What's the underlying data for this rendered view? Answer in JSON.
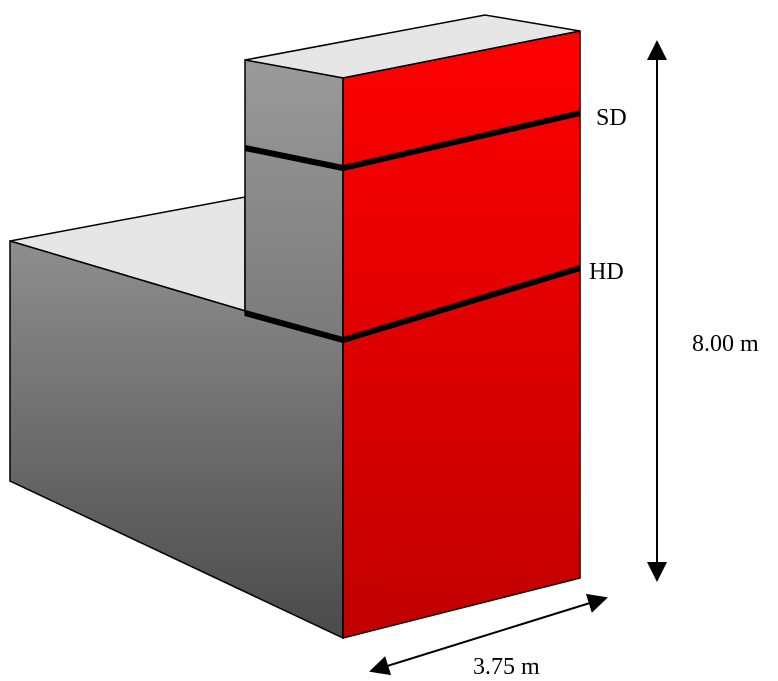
{
  "labels": {
    "upper_line": "SD",
    "lower_line": "HD",
    "height": "8.00 m",
    "depth": "3.75 m"
  },
  "colors": {
    "front_face_top": "#ff0000",
    "front_face_bottom": "#c00000",
    "side_face_light": "#9a9a9a",
    "side_face_dark": "#4a4a4a",
    "top_face": "#e6e6e6",
    "outline": "#000000"
  }
}
